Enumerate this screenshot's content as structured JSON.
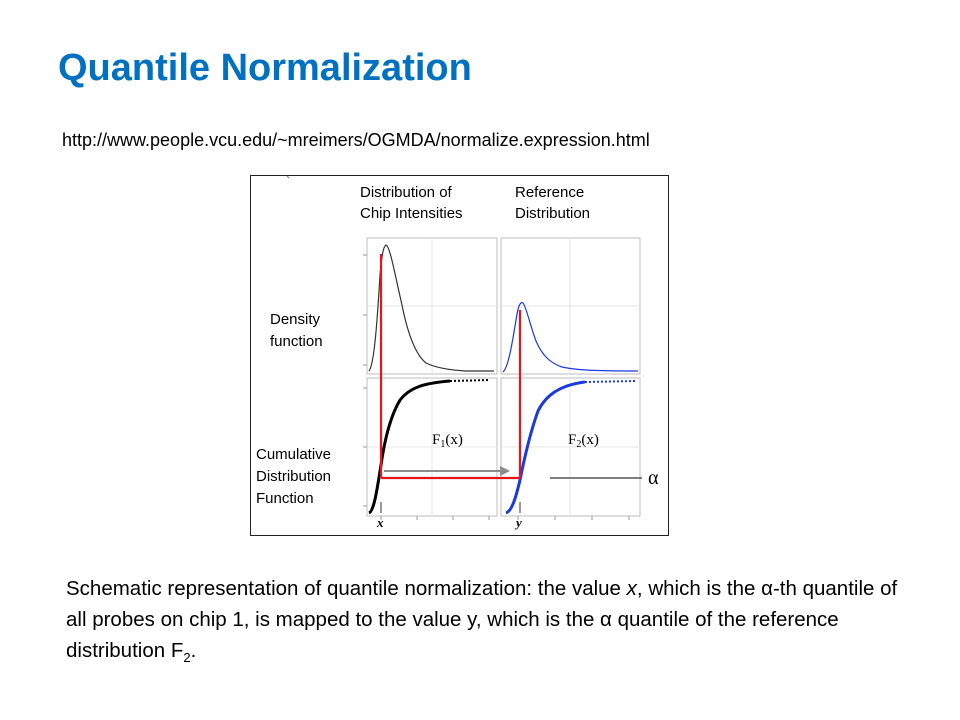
{
  "slide": {
    "title": "Quantile Normalization",
    "source_url": "http://www.people.vcu.edu/~mreimers/OGMDA/normalize.expression.html"
  },
  "figure": {
    "header_left_line1": "Distribution of",
    "header_left_line2": "Chip Intensities",
    "header_right_line1": "Reference",
    "header_right_line2": "Distribution",
    "density_label_line1": "Density",
    "density_label_line2": "function",
    "cdf_label_line1": "Cumulative",
    "cdf_label_line2": "Distribution",
    "cdf_label_line3": "Function",
    "f1_label": "F",
    "f1_sub": "1",
    "f1_arg": "(x)",
    "f2_label": "F",
    "f2_sub": "2",
    "f2_arg": "(x)",
    "alpha_label": "α",
    "x_label": "x",
    "y_label": "y",
    "colors": {
      "chip_curve": "#333333",
      "reference_curve": "#1a3ae0",
      "mapping_path": "#e8141c",
      "panel_border": "#bdbdbd",
      "grid": "#dddddd"
    }
  },
  "caption": {
    "part1": "Schematic representation of quantile normalization: the value ",
    "x_var": "x",
    "part2": ", which is the α-th quantile of all probes on chip 1, is mapped to the value y, which is the α quantile of the reference distribution F",
    "sub": "2",
    "part3": "."
  }
}
